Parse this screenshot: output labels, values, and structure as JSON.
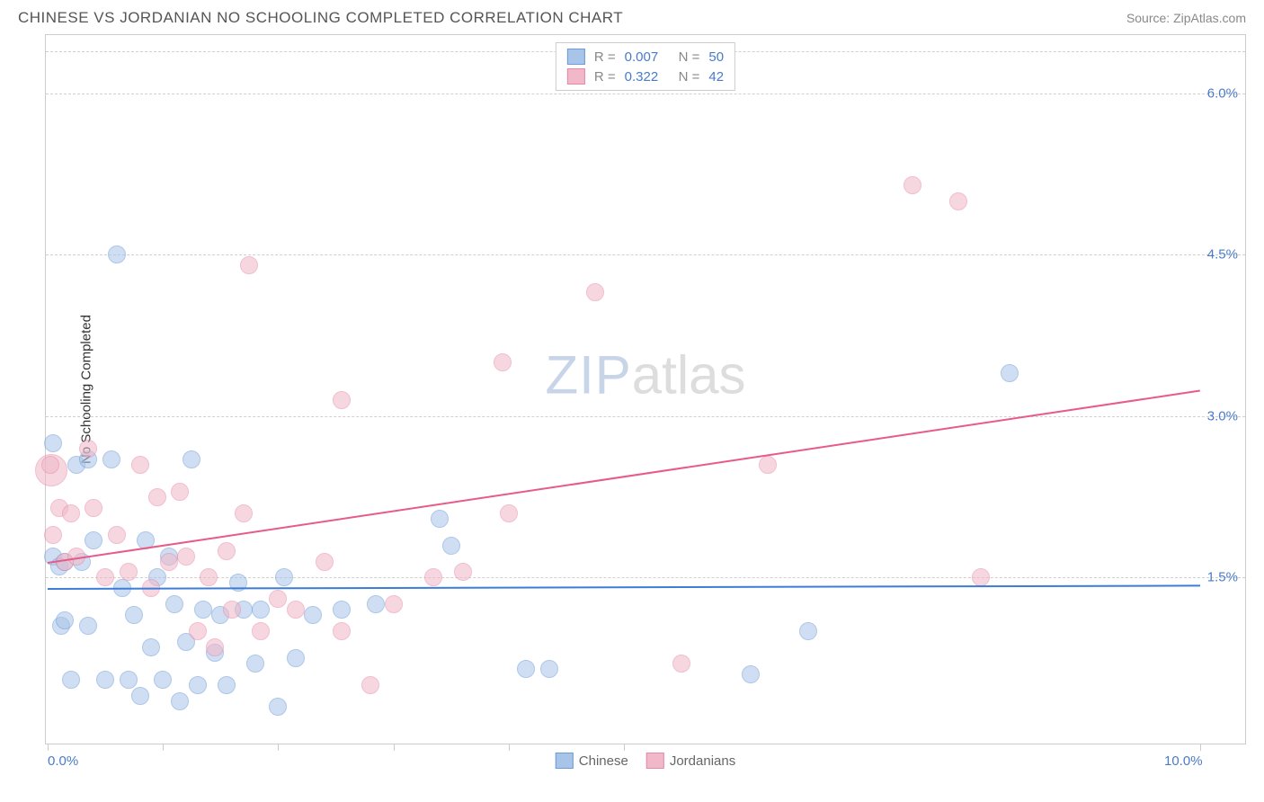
{
  "header": {
    "title": "CHINESE VS JORDANIAN NO SCHOOLING COMPLETED CORRELATION CHART",
    "source": "Source: ZipAtlas.com"
  },
  "chart": {
    "type": "scatter",
    "y_label": "No Schooling Completed",
    "background_color": "#ffffff",
    "border_color": "#cccccc",
    "grid_color": "#d0d0d0",
    "axis_label_color": "#4a7bc8",
    "xlim": [
      0,
      10
    ],
    "ylim": [
      0,
      6.5
    ],
    "x_ticks": [
      0,
      1,
      2,
      3,
      4,
      5,
      10
    ],
    "x_tick_labels": {
      "0": "0.0%",
      "10": "10.0%"
    },
    "y_gridlines": [
      1.5,
      3.0,
      4.5,
      6.0
    ],
    "y_tick_labels": [
      "1.5%",
      "3.0%",
      "4.5%",
      "6.0%"
    ],
    "watermark": {
      "part1": "ZIP",
      "part2": "atlas"
    },
    "series": [
      {
        "name": "Chinese",
        "fill_color": "#a8c4e8",
        "stroke_color": "#6b9bd8",
        "fill_opacity": 0.55,
        "point_radius": 10,
        "trend": {
          "y_start": 1.4,
          "y_end": 1.43,
          "color": "#3b7dd8",
          "width": 2
        },
        "R": "0.007",
        "N": "50",
        "points": [
          [
            0.05,
            2.75
          ],
          [
            0.05,
            1.7
          ],
          [
            0.1,
            1.6
          ],
          [
            0.12,
            1.05
          ],
          [
            0.15,
            1.65
          ],
          [
            0.2,
            0.55
          ],
          [
            0.25,
            2.55
          ],
          [
            0.3,
            1.65
          ],
          [
            0.35,
            2.6
          ],
          [
            0.35,
            1.05
          ],
          [
            0.4,
            1.85
          ],
          [
            0.5,
            0.55
          ],
          [
            0.55,
            2.6
          ],
          [
            0.6,
            4.5
          ],
          [
            0.65,
            1.4
          ],
          [
            0.7,
            0.55
          ],
          [
            0.75,
            1.15
          ],
          [
            0.8,
            0.4
          ],
          [
            0.85,
            1.85
          ],
          [
            0.9,
            0.85
          ],
          [
            0.95,
            1.5
          ],
          [
            1.0,
            0.55
          ],
          [
            1.05,
            1.7
          ],
          [
            1.1,
            1.25
          ],
          [
            1.15,
            0.35
          ],
          [
            1.2,
            0.9
          ],
          [
            1.25,
            2.6
          ],
          [
            1.3,
            0.5
          ],
          [
            1.35,
            1.2
          ],
          [
            1.45,
            0.8
          ],
          [
            1.5,
            1.15
          ],
          [
            1.55,
            0.5
          ],
          [
            1.65,
            1.45
          ],
          [
            1.7,
            1.2
          ],
          [
            1.8,
            0.7
          ],
          [
            1.85,
            1.2
          ],
          [
            2.0,
            0.3
          ],
          [
            2.05,
            1.5
          ],
          [
            2.15,
            0.75
          ],
          [
            2.3,
            1.15
          ],
          [
            2.55,
            1.2
          ],
          [
            2.85,
            1.25
          ],
          [
            3.4,
            2.05
          ],
          [
            3.5,
            1.8
          ],
          [
            4.15,
            0.65
          ],
          [
            4.35,
            0.65
          ],
          [
            6.1,
            0.6
          ],
          [
            6.6,
            1.0
          ],
          [
            8.35,
            3.4
          ],
          [
            0.15,
            1.1
          ]
        ]
      },
      {
        "name": "Jordanians",
        "fill_color": "#f0b8c8",
        "stroke_color": "#e888a8",
        "fill_opacity": 0.55,
        "point_radius": 10,
        "trend": {
          "y_start": 1.65,
          "y_end": 3.25,
          "color": "#e85a88",
          "width": 2
        },
        "R": "0.322",
        "N": "42",
        "points": [
          [
            0.02,
            2.55
          ],
          [
            0.05,
            1.9
          ],
          [
            0.1,
            2.15
          ],
          [
            0.15,
            1.65
          ],
          [
            0.2,
            2.1
          ],
          [
            0.25,
            1.7
          ],
          [
            0.35,
            2.7
          ],
          [
            0.4,
            2.15
          ],
          [
            0.5,
            1.5
          ],
          [
            0.6,
            1.9
          ],
          [
            0.7,
            1.55
          ],
          [
            0.8,
            2.55
          ],
          [
            0.9,
            1.4
          ],
          [
            0.95,
            2.25
          ],
          [
            1.05,
            1.65
          ],
          [
            1.15,
            2.3
          ],
          [
            1.2,
            1.7
          ],
          [
            1.3,
            1.0
          ],
          [
            1.4,
            1.5
          ],
          [
            1.45,
            0.85
          ],
          [
            1.55,
            1.75
          ],
          [
            1.6,
            1.2
          ],
          [
            1.7,
            2.1
          ],
          [
            1.75,
            4.4
          ],
          [
            1.85,
            1.0
          ],
          [
            2.0,
            1.3
          ],
          [
            2.15,
            1.2
          ],
          [
            2.4,
            1.65
          ],
          [
            2.55,
            1.0
          ],
          [
            2.55,
            3.15
          ],
          [
            2.8,
            0.5
          ],
          [
            3.0,
            1.25
          ],
          [
            3.35,
            1.5
          ],
          [
            3.6,
            1.55
          ],
          [
            3.95,
            3.5
          ],
          [
            4.0,
            2.1
          ],
          [
            4.75,
            4.15
          ],
          [
            5.5,
            0.7
          ],
          [
            6.25,
            2.55
          ],
          [
            7.5,
            5.15
          ],
          [
            7.9,
            5.0
          ],
          [
            8.1,
            1.5
          ]
        ],
        "big_points": [
          [
            0.03,
            2.5,
            18
          ]
        ]
      }
    ],
    "legend_top": {
      "rows": [
        {
          "swatch_fill": "#a8c4e8",
          "swatch_stroke": "#6b9bd8",
          "R_label": "R =",
          "R_val": "0.007",
          "N_label": "N =",
          "N_val": "50"
        },
        {
          "swatch_fill": "#f0b8c8",
          "swatch_stroke": "#e888a8",
          "R_label": "R =",
          "R_val": "0.322",
          "N_label": "N =",
          "N_val": "42"
        }
      ]
    },
    "legend_bottom": [
      {
        "swatch_fill": "#a8c4e8",
        "swatch_stroke": "#6b9bd8",
        "label": "Chinese"
      },
      {
        "swatch_fill": "#f0b8c8",
        "swatch_stroke": "#e888a8",
        "label": "Jordanians"
      }
    ]
  }
}
